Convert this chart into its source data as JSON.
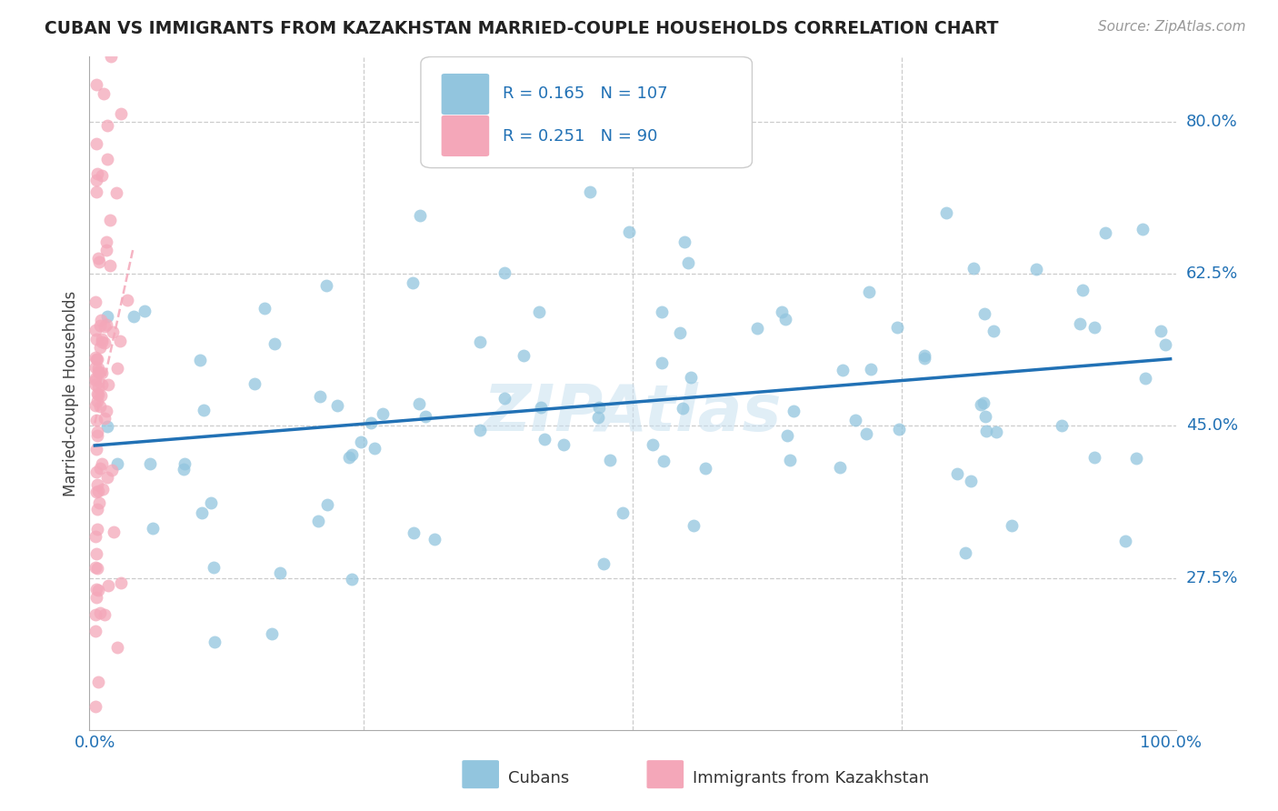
{
  "title": "CUBAN VS IMMIGRANTS FROM KAZAKHSTAN MARRIED-COUPLE HOUSEHOLDS CORRELATION CHART",
  "source": "Source: ZipAtlas.com",
  "ylabel": "Married-couple Households",
  "watermark": "ZIPAtlas",
  "legend_label1": "Cubans",
  "legend_label2": "Immigrants from Kazakhstan",
  "R1": 0.165,
  "N1": 107,
  "R2": 0.251,
  "N2": 90,
  "color1": "#92C5DE",
  "color2": "#F4A7B9",
  "trendline1_color": "#2171B5",
  "trendline2_color": "#F4A7B9",
  "background_color": "#ffffff",
  "ytick_positions": [
    0.275,
    0.45,
    0.625,
    0.8
  ],
  "ytick_labels": [
    "27.5%",
    "45.0%",
    "62.5%",
    "80.0%"
  ],
  "figsize": [
    14.06,
    8.92
  ],
  "dpi": 100
}
